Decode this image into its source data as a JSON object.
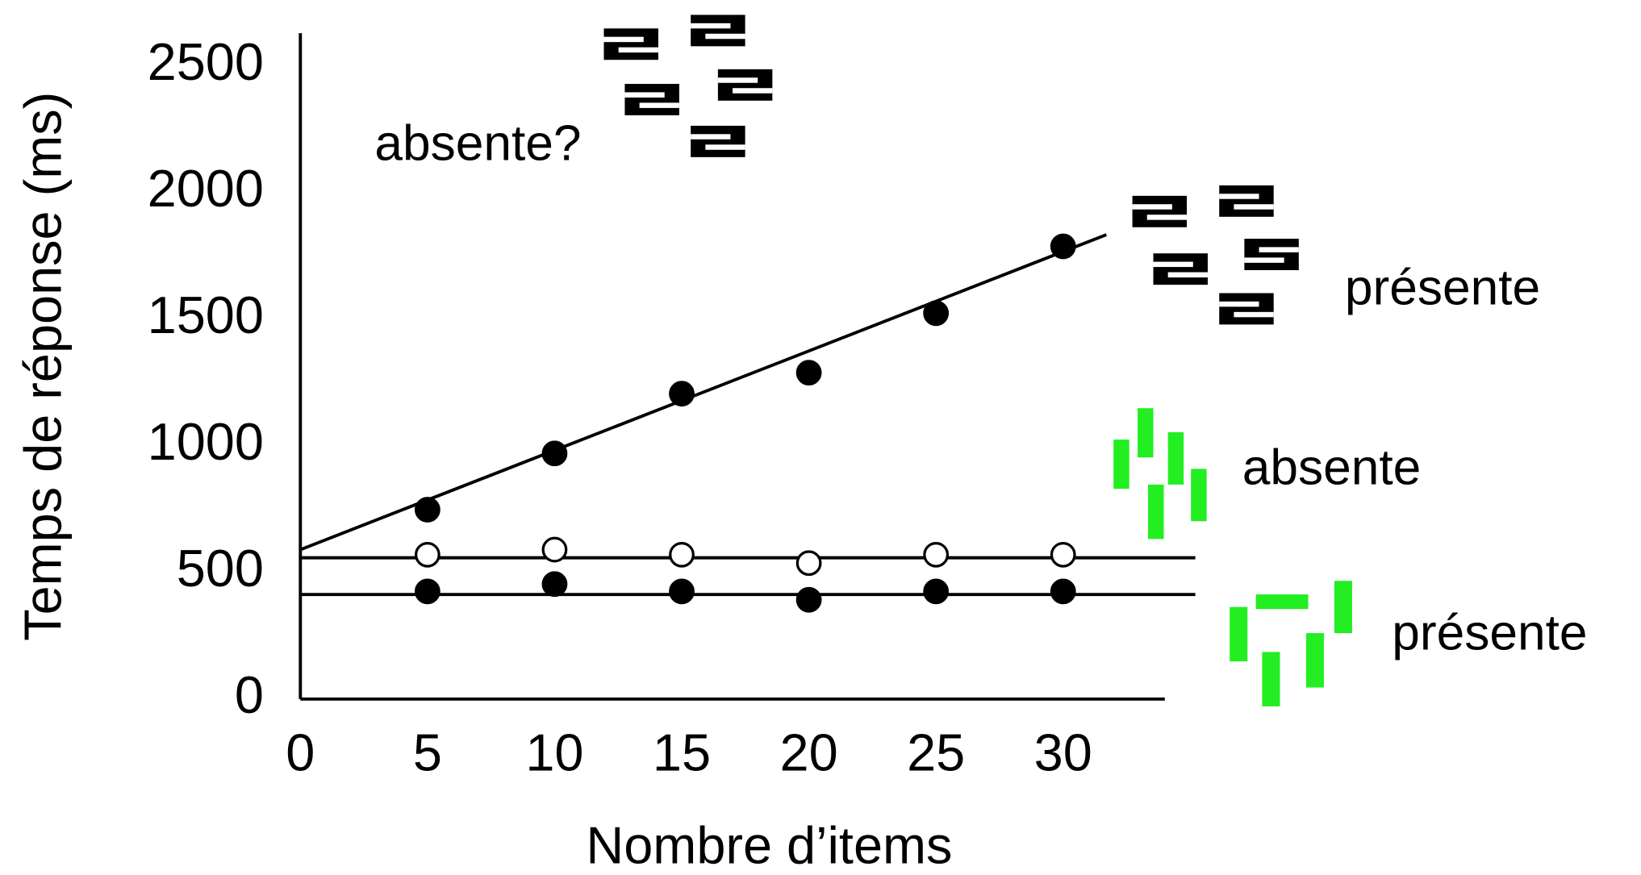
{
  "chart_data": {
    "type": "scatter",
    "xlabel": "Nombre d’items",
    "ylabel": "Temps de réponse (ms)",
    "xlim": [
      0,
      34
    ],
    "ylim": [
      0,
      2630
    ],
    "xticks": [
      0,
      5,
      10,
      15,
      20,
      25,
      30
    ],
    "yticks": [
      0,
      500,
      1000,
      1500,
      2000,
      2500
    ],
    "x": [
      5,
      10,
      15,
      20,
      25,
      30
    ],
    "series": [
      {
        "color": "#000000",
        "filled": true,
        "values": [
          748,
          970,
          1206,
          1289,
          1524,
          1788
        ]
      },
      {
        "color": "#000000",
        "filled": false,
        "values": [
          570,
          590,
          570,
          537,
          570,
          570
        ]
      },
      {
        "color": "#000000",
        "filled": true,
        "values": [
          425,
          454,
          425,
          392,
          425,
          425
        ]
      }
    ],
    "fit_lines": [
      {
        "x": [
          0,
          31.7
        ],
        "values": [
          590,
          1834
        ]
      },
      {
        "x": [
          0,
          35.2
        ],
        "values": [
          558,
          558
        ]
      },
      {
        "x": [
          0,
          35.2
        ],
        "values": [
          413,
          413
        ]
      }
    ],
    "annotations": [
      "absente?",
      "présente",
      "absente",
      "présente"
    ]
  }
}
